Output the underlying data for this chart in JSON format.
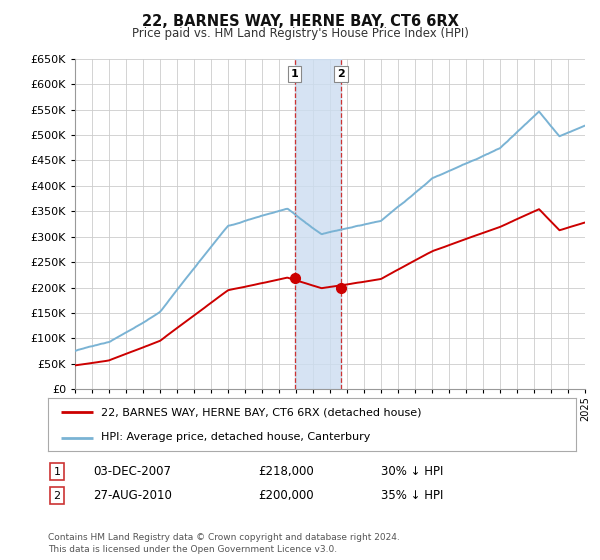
{
  "title": "22, BARNES WAY, HERNE BAY, CT6 6RX",
  "subtitle": "Price paid vs. HM Land Registry's House Price Index (HPI)",
  "ylim": [
    0,
    650000
  ],
  "yticks": [
    0,
    50000,
    100000,
    150000,
    200000,
    250000,
    300000,
    350000,
    400000,
    450000,
    500000,
    550000,
    600000,
    650000
  ],
  "purchase1": {
    "date_num": 2007.92,
    "price": 218000,
    "label": "1",
    "date_str": "03-DEC-2007",
    "hpi_pct": "30% ↓ HPI"
  },
  "purchase2": {
    "date_num": 2010.65,
    "price": 200000,
    "label": "2",
    "date_str": "27-AUG-2010",
    "hpi_pct": "35% ↓ HPI"
  },
  "hpi_color": "#7ab3d4",
  "price_color": "#cc0000",
  "highlight_color": "#ccddf0",
  "grid_color": "#cccccc",
  "background_color": "#ffffff",
  "legend_entries": [
    "22, BARNES WAY, HERNE BAY, CT6 6RX (detached house)",
    "HPI: Average price, detached house, Canterbury"
  ],
  "footnote1": "Contains HM Land Registry data © Crown copyright and database right 2024.",
  "footnote2": "This data is licensed under the Open Government Licence v3.0.",
  "table_rows": [
    [
      "1",
      "03-DEC-2007",
      "£218,000",
      "30% ↓ HPI"
    ],
    [
      "2",
      "27-AUG-2010",
      "£200,000",
      "35% ↓ HPI"
    ]
  ]
}
